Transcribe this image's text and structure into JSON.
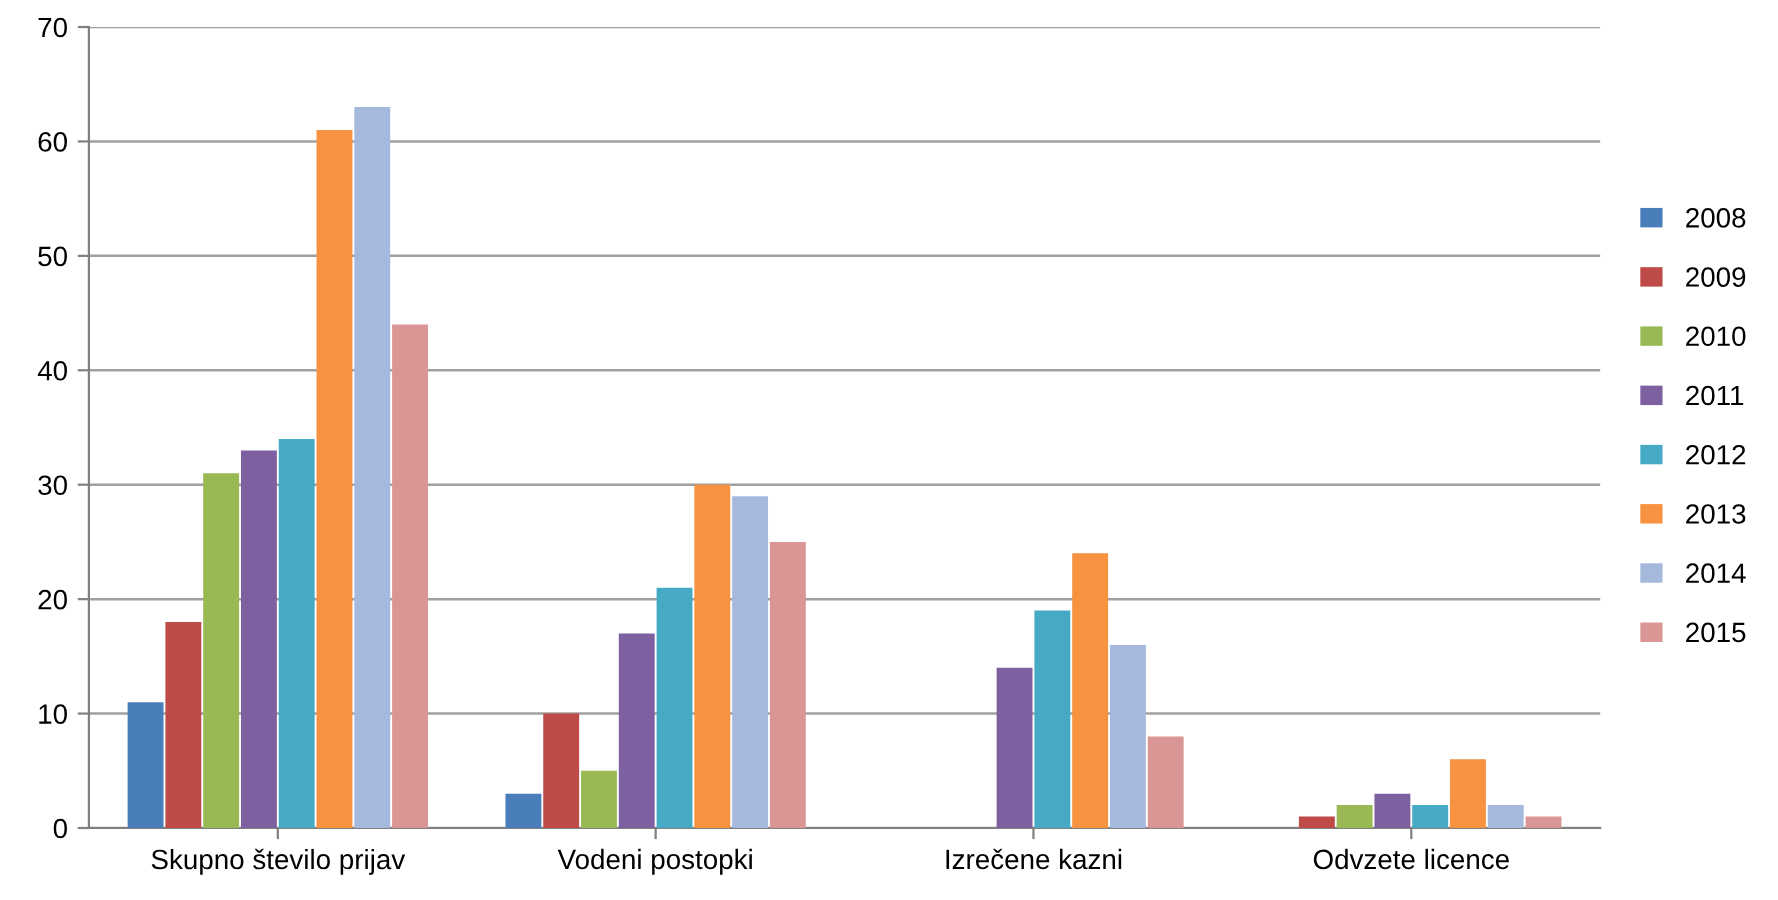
{
  "chart_data": {
    "type": "bar",
    "categories": [
      "Skupno število prijav",
      "Vodeni postopki",
      "Izrečene kazni",
      "Odvzete licence"
    ],
    "series": [
      {
        "name": "2008",
        "color": "#4a7ebb",
        "values": [
          11,
          3,
          0,
          0
        ]
      },
      {
        "name": "2009",
        "color": "#be4b48",
        "values": [
          18,
          10,
          0,
          1
        ]
      },
      {
        "name": "2010",
        "color": "#98b954",
        "values": [
          31,
          5,
          0,
          2
        ]
      },
      {
        "name": "2011",
        "color": "#7d60a0",
        "values": [
          33,
          17,
          14,
          3
        ]
      },
      {
        "name": "2012",
        "color": "#46aac5",
        "values": [
          34,
          21,
          19,
          2
        ]
      },
      {
        "name": "2013",
        "color": "#f69240",
        "values": [
          61,
          30,
          24,
          6
        ]
      },
      {
        "name": "2014",
        "color": "#a5b9dc",
        "values": [
          63,
          29,
          16,
          2
        ]
      },
      {
        "name": "2015",
        "color": "#d99694",
        "values": [
          44,
          25,
          8,
          1
        ]
      }
    ],
    "ylim": [
      0,
      70
    ],
    "yticks": [
      0,
      10,
      20,
      30,
      40,
      50,
      60,
      70
    ],
    "grid": "y",
    "legend": "right"
  }
}
